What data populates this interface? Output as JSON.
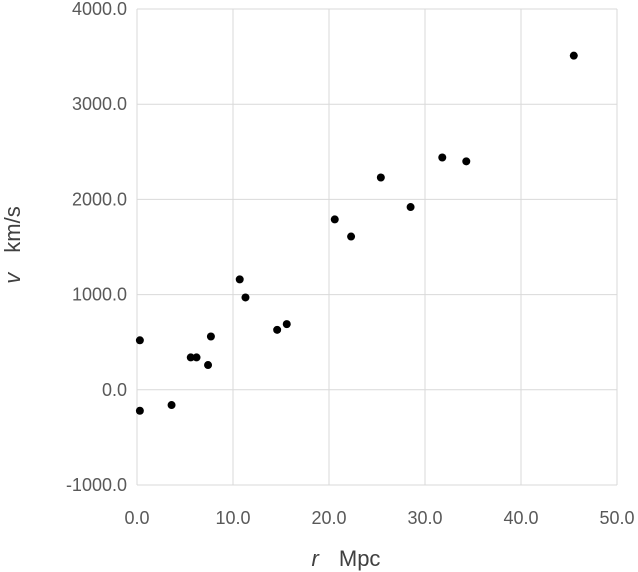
{
  "chart_data": {
    "type": "scatter",
    "title": "",
    "xlabel_var": "r",
    "xlabel_unit": "Mpc",
    "ylabel_var": "v",
    "ylabel_unit": "km/s",
    "xlim": [
      0,
      50
    ],
    "ylim": [
      -1000,
      4000
    ],
    "x_ticks": [
      0,
      10,
      20,
      30,
      40,
      50
    ],
    "x_tick_labels": [
      "0.0",
      "10.0",
      "20.0",
      "30.0",
      "40.0",
      "50.0"
    ],
    "y_ticks": [
      -1000,
      0,
      1000,
      2000,
      3000,
      4000
    ],
    "y_tick_labels": [
      "-1000.0",
      "0.0",
      "1000.0",
      "2000.0",
      "3000.0",
      "4000.0"
    ],
    "grid": true,
    "legend": "none",
    "marker_color": "#000000",
    "grid_color": "#d9d9d9",
    "points": [
      {
        "x": 0.3,
        "y": 520
      },
      {
        "x": 0.3,
        "y": -220
      },
      {
        "x": 3.6,
        "y": -160
      },
      {
        "x": 5.6,
        "y": 340
      },
      {
        "x": 6.2,
        "y": 340
      },
      {
        "x": 7.4,
        "y": 260
      },
      {
        "x": 7.7,
        "y": 560
      },
      {
        "x": 10.7,
        "y": 1160
      },
      {
        "x": 11.3,
        "y": 970
      },
      {
        "x": 14.6,
        "y": 630
      },
      {
        "x": 15.6,
        "y": 690
      },
      {
        "x": 20.6,
        "y": 1790
      },
      {
        "x": 22.3,
        "y": 1610
      },
      {
        "x": 25.4,
        "y": 2230
      },
      {
        "x": 28.5,
        "y": 1920
      },
      {
        "x": 31.8,
        "y": 2440
      },
      {
        "x": 34.3,
        "y": 2400
      },
      {
        "x": 45.5,
        "y": 3510
      }
    ]
  }
}
